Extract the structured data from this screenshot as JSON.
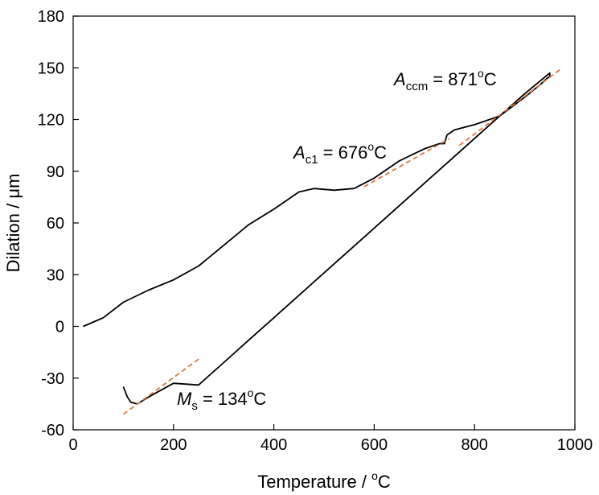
{
  "chart_data": {
    "type": "line",
    "xlabel": {
      "prefix": "Temperature / ",
      "sup": "o",
      "suffix": "C"
    },
    "ylabel": "Dilation / μm",
    "xlim": [
      0,
      1000
    ],
    "ylim": [
      -60,
      180
    ],
    "xticks": [
      0,
      200,
      400,
      600,
      800,
      1000
    ],
    "yticks": [
      -60,
      -30,
      0,
      30,
      60,
      90,
      120,
      150,
      180
    ],
    "x_tick_labels": [
      "0",
      "200",
      "400",
      "600",
      "800",
      "1000"
    ],
    "y_tick_labels": [
      "-60",
      "-30",
      "0",
      "30",
      "60",
      "90",
      "120",
      "150",
      "180"
    ],
    "grid": false,
    "series": [
      {
        "style": "solid",
        "color": "#000000",
        "x": [
          20,
          60,
          100,
          150,
          200,
          250,
          300,
          350,
          400,
          450,
          480,
          520,
          560,
          600,
          650,
          700,
          730,
          740,
          745,
          760,
          800,
          850,
          900,
          930,
          945,
          950,
          950,
          900,
          850,
          800,
          750,
          700,
          650,
          600,
          550,
          500,
          450,
          400,
          350,
          300,
          250,
          200,
          150,
          128,
          115,
          108,
          100
        ],
        "y": [
          0,
          5,
          14,
          21,
          27,
          35,
          47,
          59,
          68,
          78,
          80,
          79,
          80,
          86,
          96,
          103,
          106,
          106,
          111,
          114,
          117,
          122,
          133,
          140,
          144,
          145,
          147,
          135,
          122,
          109,
          96,
          83,
          70,
          57,
          44,
          31,
          18,
          5,
          -8,
          -21,
          -34,
          -33,
          -41,
          -45,
          -44,
          -41,
          -35
        ]
      },
      {
        "style": "dashed",
        "color": "#e07840",
        "x": [
          100,
          250
        ],
        "y": [
          -51,
          -19
        ]
      },
      {
        "style": "dashed",
        "color": "#e07840",
        "x": [
          580,
          750
        ],
        "y": [
          81,
          109
        ]
      },
      {
        "style": "dashed",
        "color": "#e07840",
        "x": [
          770,
          975
        ],
        "y": [
          105,
          150
        ]
      }
    ],
    "annotations": [
      {
        "id": "ms",
        "symbol": "M",
        "sub": "s",
        "value": " = 134",
        "sup": "o",
        "unit": "C"
      },
      {
        "id": "ac1",
        "symbol": "A",
        "sub": "c1",
        "value": " = 676",
        "sup": "o",
        "unit": "C"
      },
      {
        "id": "accm",
        "symbol": "A",
        "sub": "ccm",
        "value": " = 871",
        "sup": "o",
        "unit": "C"
      }
    ]
  }
}
